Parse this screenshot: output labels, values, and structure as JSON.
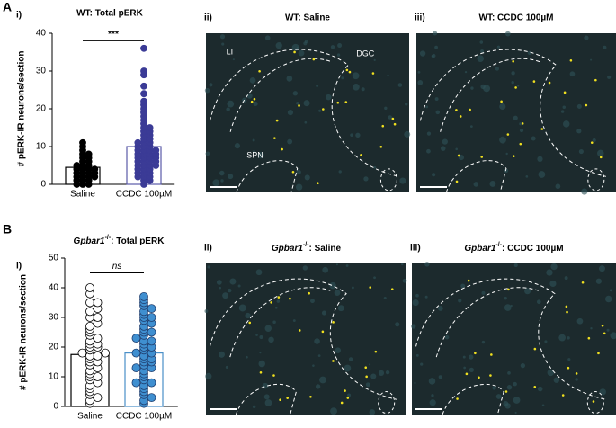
{
  "panels": {
    "A": "A",
    "B": "B"
  },
  "chart_data": [
    {
      "type": "dotbar",
      "panel_label": "i)",
      "title": "WT: Total pERK",
      "ylabel": "# pERK-IR neurons/section",
      "categories": [
        "Saline",
        "CCDC 100µM"
      ],
      "values": [
        4.5,
        10
      ],
      "points": [
        [
          0,
          0,
          0,
          1,
          1,
          1,
          2,
          2,
          2,
          2,
          3,
          3,
          3,
          3,
          4,
          4,
          4,
          4,
          5,
          5,
          5,
          6,
          6,
          7,
          7,
          8,
          8,
          9,
          10,
          11
        ],
        [
          0,
          1,
          1,
          2,
          2,
          2,
          3,
          3,
          3,
          4,
          4,
          4,
          5,
          5,
          5,
          5,
          6,
          6,
          6,
          6,
          7,
          7,
          7,
          7,
          8,
          8,
          8,
          8,
          9,
          9,
          9,
          9,
          10,
          10,
          10,
          11,
          11,
          11,
          12,
          12,
          13,
          13,
          14,
          14,
          15,
          15,
          16,
          17,
          18,
          19,
          20,
          21,
          22,
          24,
          26,
          29,
          30,
          36
        ]
      ],
      "bar_colors": [
        "#000000",
        "#5a5aa8"
      ],
      "point_fill": [
        "#000000",
        "#3b3b96"
      ],
      "point_stroke": [
        "#000000",
        "#3b3b96"
      ],
      "ylim": [
        0,
        40
      ],
      "yticks": [
        0,
        10,
        20,
        30,
        40
      ],
      "annotation": "***",
      "annotation_y": 38
    },
    {
      "type": "dotbar",
      "panel_label": "i)",
      "title": {
        "gene": "Gpbar1",
        "genotype": "-/-",
        "text": ": Total pERK"
      },
      "ylabel": "# pERK-IR neurons/section",
      "categories": [
        "Saline",
        "CCDC 100µM"
      ],
      "values": [
        17.5,
        18
      ],
      "points": [
        [
          1,
          2,
          3,
          4,
          5,
          6,
          7,
          8,
          9,
          10,
          10,
          11,
          12,
          13,
          14,
          15,
          15,
          16,
          17,
          17,
          18,
          18,
          19,
          20,
          20,
          21,
          21,
          22,
          23,
          24,
          25,
          26,
          27,
          28,
          30,
          30,
          32,
          33,
          35,
          35,
          38,
          40
        ],
        [
          1,
          2,
          3,
          4,
          5,
          6,
          7,
          8,
          8,
          9,
          10,
          11,
          12,
          13,
          13,
          14,
          15,
          15,
          16,
          16,
          17,
          18,
          18,
          19,
          20,
          20,
          21,
          22,
          22,
          23,
          24,
          25,
          25,
          26,
          27,
          28,
          29,
          30,
          30,
          31,
          32,
          33,
          34,
          35,
          36,
          37
        ]
      ],
      "bar_colors": [
        "#000000",
        "#4a90c8"
      ],
      "point_fill": [
        "#ffffff",
        "#3f8fd0"
      ],
      "point_stroke": [
        "#000000",
        "#1f3f70"
      ],
      "ylim": [
        0,
        50
      ],
      "yticks": [
        0,
        10,
        20,
        30,
        40,
        50
      ],
      "annotation": "ns",
      "annotation_y": 45
    }
  ],
  "images": [
    {
      "label": "ii)",
      "title": "WT: Saline",
      "annotations": [
        "LI",
        "DGC",
        "SPN"
      ]
    },
    {
      "label": "iii)",
      "title": "WT: CCDC 100µM"
    },
    {
      "label": "ii)",
      "gene": "Gpbar1",
      "genotype": "-/-",
      "title": ": Saline"
    },
    {
      "label": "iii)",
      "gene": "Gpbar1",
      "genotype": "-/-",
      "title": ": CCDC 100µM"
    }
  ]
}
